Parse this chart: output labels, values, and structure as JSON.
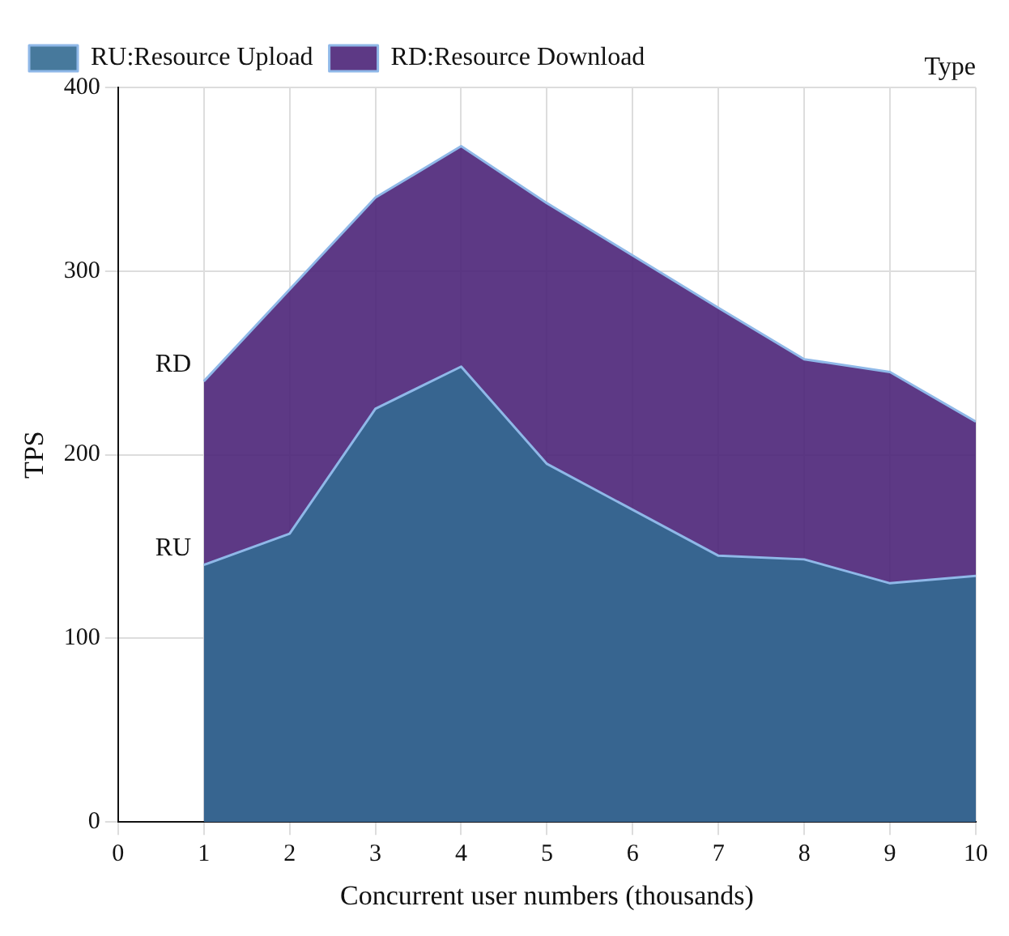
{
  "chart_data": {
    "type": "area",
    "xlabel": "Concurrent user numbers (thousands)",
    "ylabel": "TPS",
    "xlim": [
      0,
      10
    ],
    "xticks": [
      0,
      1,
      2,
      3,
      4,
      5,
      6,
      7,
      8,
      9,
      10
    ],
    "ylim": [
      0,
      400
    ],
    "yticks": [
      0,
      100,
      200,
      300,
      400
    ],
    "x": [
      1,
      2,
      3,
      4,
      5,
      7,
      8,
      9,
      10
    ],
    "series": [
      {
        "name": "RU:Resource Upload",
        "color": "#336a91",
        "values": [
          140,
          157,
          225,
          248,
          195,
          145,
          143,
          130,
          134
        ]
      },
      {
        "name": "RD:Resource Download",
        "color": "#4b2378",
        "values": [
          240,
          290,
          340,
          368,
          337,
          280,
          252,
          245,
          218
        ]
      }
    ],
    "annotations": [
      "RU",
      "RD",
      "Type"
    ],
    "grid": true,
    "legend": "top left"
  }
}
